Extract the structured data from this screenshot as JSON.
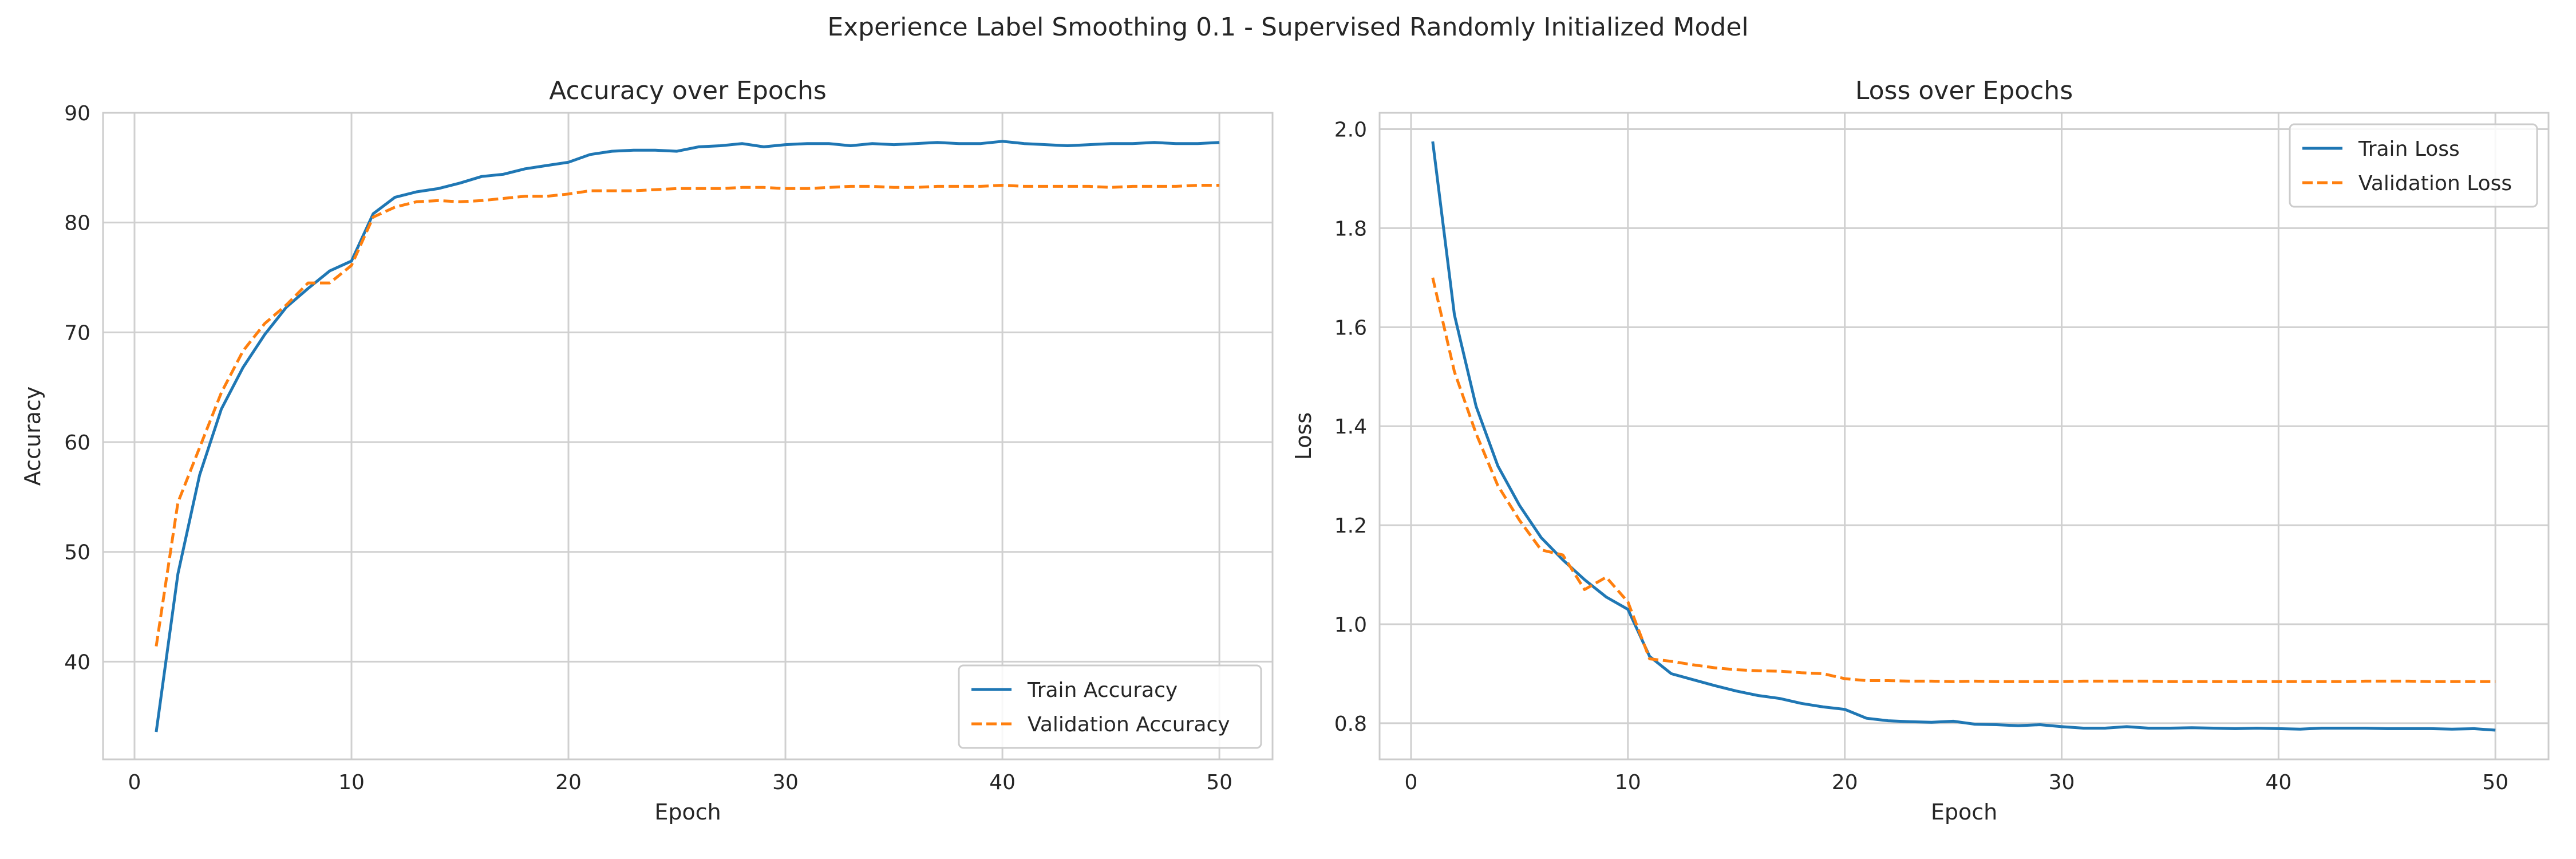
{
  "figure": {
    "suptitle": "Experience Label Smoothing 0.1 - Supervised Randomly Initialized Model"
  },
  "colors": {
    "train": "#1f77b4",
    "validation": "#ff7f0e",
    "grid": "#d0d0d0",
    "axes_edge": "#cccccc",
    "text": "#262626"
  },
  "chart_data": [
    {
      "type": "line",
      "title": "Accuracy over Epochs",
      "xlabel": "Epoch",
      "ylabel": "Accuracy",
      "xlim": [
        -1.45,
        52.45
      ],
      "ylim": [
        31.1,
        90.0
      ],
      "xticks": [
        0,
        10,
        20,
        30,
        40,
        50
      ],
      "yticks": [
        40,
        50,
        60,
        70,
        80,
        90
      ],
      "grid": true,
      "legend_position": "lower-right",
      "x": [
        1,
        2,
        3,
        4,
        5,
        6,
        7,
        8,
        9,
        10,
        11,
        12,
        13,
        14,
        15,
        16,
        17,
        18,
        19,
        20,
        21,
        22,
        23,
        24,
        25,
        26,
        27,
        28,
        29,
        30,
        31,
        32,
        33,
        34,
        35,
        36,
        37,
        38,
        39,
        40,
        41,
        42,
        43,
        44,
        45,
        46,
        47,
        48,
        49,
        50
      ],
      "series": [
        {
          "name": "Train Accuracy",
          "style": "solid",
          "values": [
            33.6,
            48.0,
            57.0,
            63.0,
            66.8,
            69.8,
            72.3,
            74.0,
            75.6,
            76.5,
            80.8,
            82.3,
            82.8,
            83.1,
            83.6,
            84.2,
            84.4,
            84.9,
            85.2,
            85.5,
            86.2,
            86.5,
            86.6,
            86.6,
            86.5,
            86.9,
            87.0,
            87.2,
            86.9,
            87.1,
            87.2,
            87.2,
            87.0,
            87.2,
            87.1,
            87.2,
            87.3,
            87.2,
            87.2,
            87.4,
            87.2,
            87.1,
            87.0,
            87.1,
            87.2,
            87.2,
            87.3,
            87.2,
            87.2,
            87.3
          ]
        },
        {
          "name": "Validation Accuracy",
          "style": "dashed",
          "values": [
            41.4,
            54.5,
            59.5,
            64.5,
            68.3,
            70.8,
            72.5,
            74.5,
            74.5,
            76.1,
            80.5,
            81.4,
            81.9,
            82.0,
            81.9,
            82.0,
            82.2,
            82.4,
            82.4,
            82.6,
            82.9,
            82.9,
            82.9,
            83.0,
            83.1,
            83.1,
            83.1,
            83.2,
            83.2,
            83.1,
            83.1,
            83.2,
            83.3,
            83.3,
            83.2,
            83.2,
            83.3,
            83.3,
            83.3,
            83.4,
            83.3,
            83.3,
            83.3,
            83.3,
            83.2,
            83.3,
            83.3,
            83.3,
            83.4,
            83.4
          ]
        }
      ]
    },
    {
      "type": "line",
      "title": "Loss over Epochs",
      "xlabel": "Epoch",
      "ylabel": "Loss",
      "xlim": [
        -1.45,
        52.45
      ],
      "ylim": [
        0.727,
        2.033
      ],
      "xticks": [
        0,
        10,
        20,
        30,
        40,
        50
      ],
      "yticks": [
        0.8,
        1.0,
        1.2,
        1.4,
        1.6,
        1.8,
        2.0
      ],
      "ytick_labels": [
        "0.8",
        "1.0",
        "1.2",
        "1.4",
        "1.6",
        "1.8",
        "2.0"
      ],
      "grid": true,
      "legend_position": "upper-right",
      "x": [
        1,
        2,
        3,
        4,
        5,
        6,
        7,
        8,
        9,
        10,
        11,
        12,
        13,
        14,
        15,
        16,
        17,
        18,
        19,
        20,
        21,
        22,
        23,
        24,
        25,
        26,
        27,
        28,
        29,
        30,
        31,
        32,
        33,
        34,
        35,
        36,
        37,
        38,
        39,
        40,
        41,
        42,
        43,
        44,
        45,
        46,
        47,
        48,
        49,
        50
      ],
      "series": [
        {
          "name": "Train Loss",
          "style": "solid",
          "values": [
            1.975,
            1.625,
            1.44,
            1.32,
            1.24,
            1.175,
            1.13,
            1.09,
            1.055,
            1.03,
            0.935,
            0.9,
            0.888,
            0.876,
            0.865,
            0.856,
            0.85,
            0.84,
            0.833,
            0.828,
            0.81,
            0.805,
            0.803,
            0.802,
            0.804,
            0.798,
            0.797,
            0.795,
            0.797,
            0.793,
            0.79,
            0.79,
            0.793,
            0.79,
            0.79,
            0.791,
            0.79,
            0.789,
            0.79,
            0.789,
            0.788,
            0.79,
            0.79,
            0.79,
            0.789,
            0.789,
            0.789,
            0.788,
            0.789,
            0.786
          ]
        },
        {
          "name": "Validation Loss",
          "style": "dashed",
          "values": [
            1.7,
            1.51,
            1.385,
            1.28,
            1.21,
            1.15,
            1.14,
            1.07,
            1.095,
            1.045,
            0.93,
            0.925,
            0.918,
            0.912,
            0.908,
            0.906,
            0.905,
            0.902,
            0.9,
            0.89,
            0.886,
            0.886,
            0.885,
            0.885,
            0.884,
            0.885,
            0.884,
            0.884,
            0.884,
            0.884,
            0.885,
            0.885,
            0.885,
            0.885,
            0.884,
            0.884,
            0.884,
            0.884,
            0.884,
            0.884,
            0.884,
            0.884,
            0.884,
            0.885,
            0.885,
            0.885,
            0.884,
            0.884,
            0.884,
            0.884
          ]
        }
      ]
    }
  ]
}
